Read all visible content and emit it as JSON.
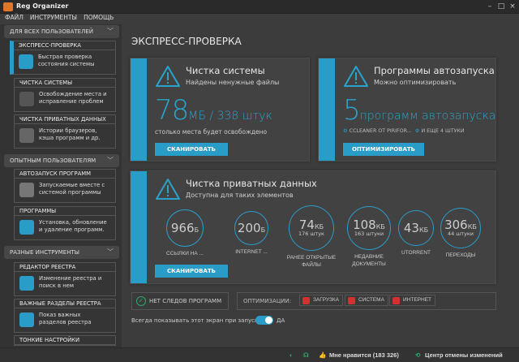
{
  "app": {
    "title": "Reg Organizer"
  },
  "menu": [
    "ФАЙЛ",
    "ИНСТРУМЕНТЫ",
    "ПОМОЩЬ"
  ],
  "sidebar": {
    "sections": [
      "ДЛЯ ВСЕХ ПОЛЬЗОВАТЕЛЕЙ",
      "ОПЫТНЫМ ПОЛЬЗОВАТЕЛЯМ",
      "РАЗНЫЕ ИНСТРУМЕНТЫ"
    ],
    "items": [
      {
        "title": "ЭКСПРЕСС-ПРОВЕРКА",
        "desc1": "Быстрая проверка",
        "desc2": "состояния системы",
        "icon": "magnifier-check-icon"
      },
      {
        "title": "ЧИСТКА СИСТЕМЫ",
        "desc1": "Освобождение места и",
        "desc2": "исправление проблем",
        "icon": "monitor-broom-icon"
      },
      {
        "title": "ЧИСТКА ПРИВАТНЫХ ДАННЫХ",
        "desc1": "Истории браузеров,",
        "desc2": "кэша программ и др.",
        "icon": "user-broom-icon"
      },
      {
        "title": "АВТОЗАПУСК ПРОГРАММ",
        "desc1": "Запускаемые вместе с",
        "desc2": "системой программы",
        "icon": "flag-gear-icon"
      },
      {
        "title": "ПРОГРАММЫ",
        "desc1": "Установка, обновление",
        "desc2": "и удаление программ.",
        "icon": "box-trash-icon"
      },
      {
        "title": "РЕДАКТОР РЕЕСТРА",
        "desc1": "Изменение реестра и",
        "desc2": "поиск в нем",
        "icon": "registry-screwdriver-icon"
      },
      {
        "title": "ВАЖНЫЕ РАЗДЕЛЫ РЕЕСТРА",
        "desc1": "Показ важных",
        "desc2": "разделов реестра",
        "icon": "registry-broom-icon"
      },
      {
        "title": "ТОНКИЕ НАСТРОЙКИ"
      }
    ]
  },
  "main": {
    "title": "ЭКСПРЕСС-ПРОВЕРКА",
    "system": {
      "title": "Чистка системы",
      "subtitle": "Найдены ненужные файлы",
      "big": "78",
      "unit": "МБ / 338 штук",
      "note": "столько места будет освобождено",
      "button": "СКАНИРОВАТЬ"
    },
    "autorun": {
      "title": "Программы автозапуска",
      "subtitle": "Можно оптимизировать",
      "big": "5",
      "unit": "программ автозапуска",
      "link1": "CCLEANER ОТ PIRIFOR...",
      "link2": "И ЕЩЕ 4 ШТУКИ",
      "button": "ОПТИМИЗИРОВАТЬ"
    },
    "private": {
      "title": "Чистка приватных данных",
      "subtitle": "Доступна для таких элементов",
      "button": "СКАНИРОВАТЬ",
      "items": [
        {
          "value": "966",
          "unit": "Б",
          "count": "",
          "label": "ССЫЛКИ НА ..."
        },
        {
          "value": "200",
          "unit": "Б",
          "count": "",
          "label": "INTERNET ..."
        },
        {
          "value": "74",
          "unit": "КБ",
          "count": "176 штук",
          "label": "РАНЕЕ ОТКРЫТЫЕ ФАЙЛЫ"
        },
        {
          "value": "108",
          "unit": "КБ",
          "count": "163 штуки",
          "label": "НЕДАВНИЕ ДОКУМЕНТЫ"
        },
        {
          "value": "43",
          "unit": "КБ",
          "count": "",
          "label": "UTORRENT"
        },
        {
          "value": "306",
          "unit": "КБ",
          "count": "44 штуки",
          "label": "ПЕРЕХОДЫ"
        }
      ]
    },
    "no_traces": "НЕТ СЛЕДОВ ПРОГРАММ",
    "optimizations": {
      "label": "ОПТИМИЗАЦИИ:",
      "items": [
        "ЗАГРУЗКА",
        "СИСТЕМА",
        "ИНТЕРНЕТ"
      ]
    },
    "always_show": {
      "label": "Всегда показывать этот экран при запуске",
      "value": "ДА",
      "on": true
    }
  },
  "status": {
    "like": "Мне нравится (183 326)",
    "undo": "Центр отмены изменений"
  },
  "colors": {
    "accent": "#2a9cc8",
    "warning": "#d43030",
    "ok": "#2fa86a"
  }
}
